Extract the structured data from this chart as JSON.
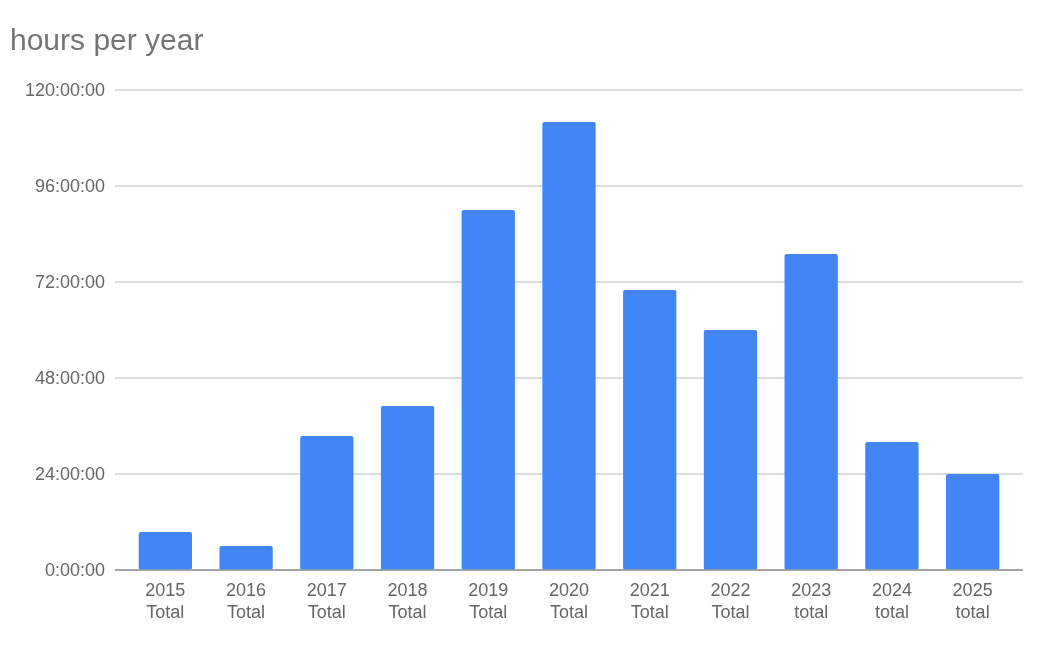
{
  "chart_data": {
    "type": "bar",
    "title": "hours per year",
    "categories": [
      "2015 Total",
      "2016 Total",
      "2017 Total",
      "2018 Total",
      "2019 Total",
      "2020 Total",
      "2021 Total",
      "2022 Total",
      "2023 total",
      "2024 total",
      "2025 total"
    ],
    "values": [
      9.5,
      6,
      33.5,
      41,
      90,
      112,
      70,
      60,
      79,
      32,
      24
    ],
    "color": "#4285f4",
    "ylim": [
      0,
      120
    ],
    "yticks": [
      {
        "value": 0,
        "label": "0:00:00"
      },
      {
        "value": 24,
        "label": "24:00:00"
      },
      {
        "value": 48,
        "label": "48:00:00"
      },
      {
        "value": 72,
        "label": "72:00:00"
      },
      {
        "value": 96,
        "label": "96:00:00"
      },
      {
        "value": 120,
        "label": "120:00:00"
      }
    ],
    "grid": "y"
  }
}
